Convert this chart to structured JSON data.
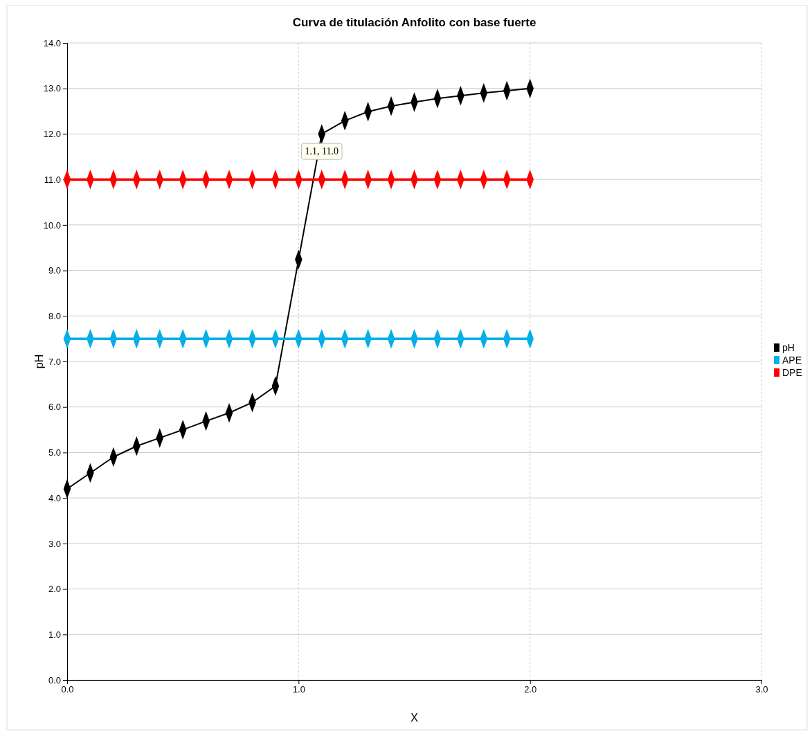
{
  "chart_data": {
    "type": "line",
    "title": "Curva de titulación Anfolito con base fuerte",
    "xlabel": "X",
    "ylabel": "pH",
    "x": [
      0,
      0.1,
      0.2,
      0.3,
      0.4,
      0.5,
      0.6,
      0.7,
      0.8,
      0.9,
      1.0,
      1.1,
      1.2,
      1.3,
      1.4,
      1.5,
      1.6,
      1.7,
      1.8,
      1.9,
      2.0
    ],
    "series": [
      {
        "name": "pH",
        "color": "#000000",
        "values": [
          4.2,
          4.55,
          4.9,
          5.14,
          5.32,
          5.5,
          5.69,
          5.87,
          6.1,
          6.46,
          9.24,
          12.0,
          12.29,
          12.49,
          12.61,
          12.7,
          12.78,
          12.84,
          12.9,
          12.95,
          13.0
        ]
      },
      {
        "name": "APE",
        "color": "#00aee8",
        "values": [
          7.5,
          7.5,
          7.5,
          7.5,
          7.5,
          7.5,
          7.5,
          7.5,
          7.5,
          7.5,
          7.5,
          7.5,
          7.5,
          7.5,
          7.5,
          7.5,
          7.5,
          7.5,
          7.5,
          7.5,
          7.5
        ]
      },
      {
        "name": "DPE",
        "color": "#ff0000",
        "values": [
          11,
          11,
          11,
          11,
          11,
          11,
          11,
          11,
          11,
          11,
          11,
          11,
          11,
          11,
          11,
          11,
          11,
          11,
          11,
          11,
          11
        ]
      }
    ],
    "xlim": [
      0,
      3
    ],
    "xticks": [
      {
        "value": 0,
        "label": "0.0"
      },
      {
        "value": 1,
        "label": "1.0"
      },
      {
        "value": 2,
        "label": "2.0"
      },
      {
        "value": 3,
        "label": "3.0"
      }
    ],
    "ylim": [
      0,
      14
    ],
    "yticks": [
      {
        "value": 0,
        "label": "0.0"
      },
      {
        "value": 1,
        "label": "1.0"
      },
      {
        "value": 2,
        "label": "2.0"
      },
      {
        "value": 3,
        "label": "3.0"
      },
      {
        "value": 4,
        "label": "4.0"
      },
      {
        "value": 5,
        "label": "5.0"
      },
      {
        "value": 6,
        "label": "6.0"
      },
      {
        "value": 7,
        "label": "7.0"
      },
      {
        "value": 8,
        "label": "8.0"
      },
      {
        "value": 9,
        "label": "9.0"
      },
      {
        "value": 10,
        "label": "10.0"
      },
      {
        "value": 11,
        "label": "11.0"
      },
      {
        "value": 12,
        "label": "12.0"
      },
      {
        "value": 13,
        "label": "13.0"
      },
      {
        "value": 14,
        "label": "14.0"
      }
    ],
    "annotations": [
      {
        "text": "1.1, 11.0",
        "x": 1.1,
        "y": 11
      }
    ],
    "grid": true,
    "legend": "right",
    "marker": "diamond",
    "line_style": "solid"
  }
}
